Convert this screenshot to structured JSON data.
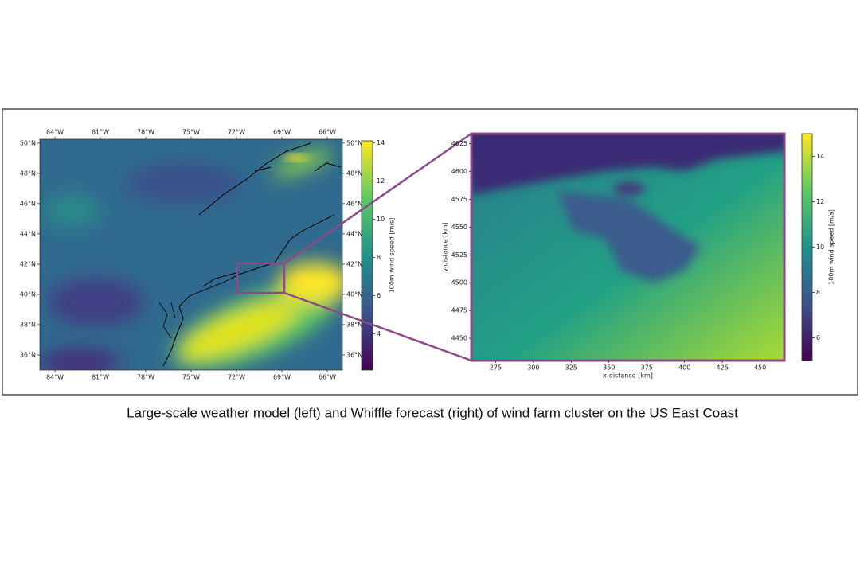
{
  "caption": "Large-scale weather model (left) and Whiffle forecast (right) of wind farm cluster on the US East Coast",
  "chart_data": [
    {
      "type": "heatmap",
      "xlim": [
        -85,
        -65
      ],
      "ylim": [
        35,
        50.25
      ],
      "xticks": [
        {
          "value": -84,
          "label": "84°W"
        },
        {
          "value": -81,
          "label": "81°W"
        },
        {
          "value": -78,
          "label": "78°W"
        },
        {
          "value": -75,
          "label": "75°W"
        },
        {
          "value": -72,
          "label": "72°W"
        },
        {
          "value": -69,
          "label": "69°W"
        },
        {
          "value": -66,
          "label": "66°W"
        }
      ],
      "yticks": [
        {
          "value": 36,
          "label": "36°N"
        },
        {
          "value": 38,
          "label": "38°N"
        },
        {
          "value": 40,
          "label": "40°N"
        },
        {
          "value": 42,
          "label": "42°N"
        },
        {
          "value": 44,
          "label": "44°N"
        },
        {
          "value": 46,
          "label": "46°N"
        },
        {
          "value": 48,
          "label": "48°N"
        },
        {
          "value": 50,
          "label": "50°N"
        }
      ],
      "colorbar": {
        "label": "100m wind speed [m/s]",
        "lim": [
          2.1,
          14.1
        ],
        "ticks": [
          4,
          6,
          8,
          10,
          12,
          14
        ]
      }
    },
    {
      "type": "heatmap",
      "xlabel": "x-distance [km]",
      "ylabel": "y-distance [km]",
      "xlim": [
        259,
        466
      ],
      "ylim": [
        4430,
        4634
      ],
      "xticks": [
        275,
        300,
        325,
        350,
        375,
        400,
        425,
        450
      ],
      "yticks": [
        4450,
        4475,
        4500,
        4525,
        4550,
        4575,
        4600,
        4625
      ],
      "colorbar": {
        "label": "100m wind speed [m/s]",
        "lim": [
          5,
          15
        ],
        "ticks": [
          6,
          8,
          10,
          12,
          14
        ]
      }
    }
  ]
}
